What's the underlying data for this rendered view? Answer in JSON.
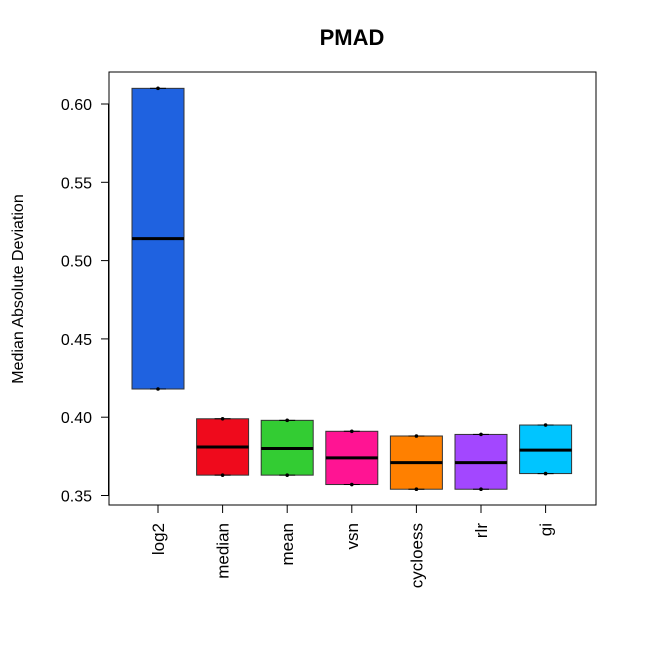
{
  "chart_data": {
    "type": "boxplot",
    "title": "PMAD",
    "xlabel": "",
    "ylabel": "Median Absolute Deviation",
    "ylim": [
      0.345,
      0.62
    ],
    "yticks": [
      0.35,
      0.4,
      0.45,
      0.5,
      0.55,
      0.6
    ],
    "ytick_labels": [
      "0.35",
      "0.40",
      "0.45",
      "0.50",
      "0.55",
      "0.60"
    ],
    "grid": false,
    "legend": "none",
    "categories": [
      "log2",
      "median",
      "mean",
      "vsn",
      "cycloess",
      "rlr",
      "gi"
    ],
    "boxes": [
      {
        "name": "log2",
        "min": 0.418,
        "q1": 0.418,
        "median": 0.514,
        "q3": 0.61,
        "max": 0.61,
        "color": "#1f62e0"
      },
      {
        "name": "median",
        "min": 0.363,
        "q1": 0.363,
        "median": 0.381,
        "q3": 0.399,
        "max": 0.399,
        "color": "#ef0a1c"
      },
      {
        "name": "mean",
        "min": 0.363,
        "q1": 0.363,
        "median": 0.38,
        "q3": 0.398,
        "max": 0.398,
        "color": "#33cc33"
      },
      {
        "name": "vsn",
        "min": 0.357,
        "q1": 0.357,
        "median": 0.374,
        "q3": 0.391,
        "max": 0.391,
        "color": "#ff1493"
      },
      {
        "name": "cycloess",
        "min": 0.354,
        "q1": 0.354,
        "median": 0.371,
        "q3": 0.388,
        "max": 0.388,
        "color": "#ff8000"
      },
      {
        "name": "rlr",
        "min": 0.354,
        "q1": 0.354,
        "median": 0.371,
        "q3": 0.389,
        "max": 0.389,
        "color": "#a347ff"
      },
      {
        "name": "gi",
        "min": 0.364,
        "q1": 0.364,
        "median": 0.379,
        "q3": 0.395,
        "max": 0.395,
        "color": "#00c5ff"
      }
    ]
  }
}
